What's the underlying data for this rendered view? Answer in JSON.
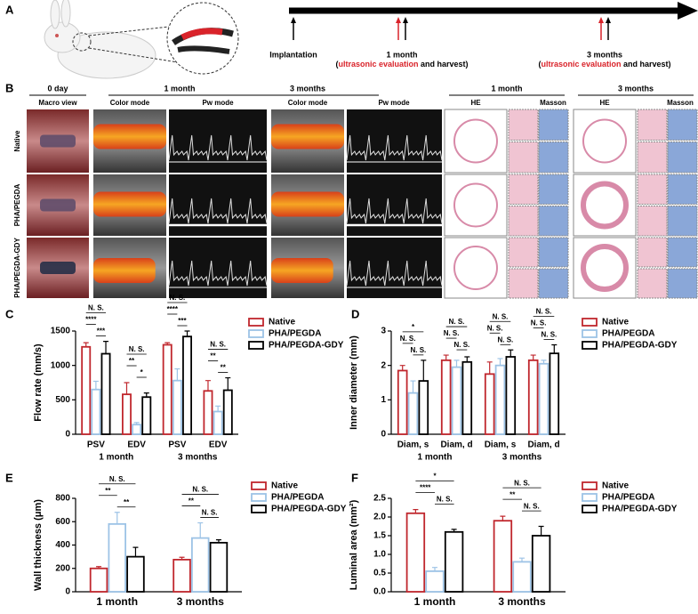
{
  "panel_labels": [
    "A",
    "B",
    "C",
    "D",
    "E",
    "F"
  ],
  "timeline": [
    {
      "label": "Implantation"
    },
    {
      "label": "1 month",
      "note": [
        "(",
        "ultrasonic evaluation",
        " and harvest)"
      ]
    },
    {
      "label": "3 months",
      "note": [
        "(",
        "ultrasonic evaluation",
        " and harvest)"
      ]
    }
  ],
  "panel_b": {
    "columns": [
      "0 day",
      "1 month",
      "3 months",
      "1 month",
      "3 months"
    ],
    "subcolumns": [
      "Macro view",
      "Color mode",
      "Pw mode",
      "Color mode",
      "Pw mode",
      "HE",
      "Masson",
      "HE",
      "Masson"
    ],
    "rows": [
      "Native",
      "PHA/PEGDA",
      "PHA/PEGDA-GDY"
    ]
  },
  "chart_data": [
    {
      "type": "bar",
      "y_label": "Flow rate (mm/s)",
      "categories": [
        "PSV",
        "EDV",
        "PSV",
        "EDV"
      ],
      "group_labels": [
        "1 month",
        "3 months"
      ],
      "series": [
        {
          "name": "Native",
          "color": "#c0272d",
          "values": [
            1270,
            580,
            1300,
            630
          ],
          "errors": [
            60,
            170,
            30,
            150
          ]
        },
        {
          "name": "PHA/PEGDA",
          "color": "#9dc3e6",
          "values": [
            650,
            140,
            780,
            330
          ],
          "errors": [
            120,
            30,
            170,
            80
          ]
        },
        {
          "name": "PHA/PEGDA-GDY",
          "color": "#000000",
          "values": [
            1170,
            540,
            1420,
            640
          ],
          "errors": [
            180,
            60,
            80,
            180
          ]
        }
      ],
      "ylim": [
        0,
        1500
      ],
      "yticks": [
        0,
        500,
        1000,
        1500
      ],
      "significance": [
        [
          "N. S.",
          "****",
          "***"
        ],
        [
          "N. S.",
          "**",
          "*"
        ],
        [
          "N. S.",
          "****",
          "***"
        ],
        [
          "N. S.",
          "**",
          "**"
        ]
      ]
    },
    {
      "type": "bar",
      "y_label": "Inner diameter (mm)",
      "categories": [
        "Diam, s",
        "Diam, d",
        "Diam, s",
        "Diam, d"
      ],
      "group_labels": [
        "1 month",
        "3 months"
      ],
      "series": [
        {
          "name": "Native",
          "color": "#c0272d",
          "values": [
            1.85,
            2.15,
            1.75,
            2.15
          ],
          "errors": [
            0.15,
            0.15,
            0.35,
            0.15
          ]
        },
        {
          "name": "PHA/PEGDA",
          "color": "#9dc3e6",
          "values": [
            1.2,
            1.95,
            2.0,
            2.05
          ],
          "errors": [
            0.35,
            0.2,
            0.2,
            0.1
          ]
        },
        {
          "name": "PHA/PEGDA-GDY",
          "color": "#000000",
          "values": [
            1.55,
            2.1,
            2.25,
            2.35
          ],
          "errors": [
            0.6,
            0.15,
            0.2,
            0.25
          ]
        }
      ],
      "ylim": [
        0,
        3
      ],
      "yticks": [
        0,
        1,
        2,
        3
      ],
      "significance": [
        [
          "*",
          "N. S.",
          "N. S."
        ],
        [
          "N. S.",
          "N. S.",
          "N. S."
        ],
        [
          "N. S.",
          "N. S.",
          "N. S."
        ],
        [
          "N. S.",
          "N. S.",
          "N. S."
        ]
      ]
    },
    {
      "type": "bar",
      "y_label": "Wall thickness (μm)",
      "categories": [
        "1 month",
        "3 months"
      ],
      "series": [
        {
          "name": "Native",
          "color": "#c0272d",
          "values": [
            200,
            275
          ],
          "errors": [
            15,
            20
          ]
        },
        {
          "name": "PHA/PEGDA",
          "color": "#9dc3e6",
          "values": [
            580,
            460
          ],
          "errors": [
            100,
            130
          ]
        },
        {
          "name": "PHA/PEGDA-GDY",
          "color": "#000000",
          "values": [
            300,
            420
          ],
          "errors": [
            80,
            25
          ]
        }
      ],
      "ylim": [
        0,
        800
      ],
      "yticks": [
        0,
        200,
        400,
        600,
        800
      ],
      "significance": [
        [
          "N. S.",
          "**",
          "**"
        ],
        [
          "N. S.",
          "**",
          "N. S."
        ]
      ]
    },
    {
      "type": "bar",
      "y_label": "Luminal area (mm²)",
      "categories": [
        "1 month",
        "3 months"
      ],
      "series": [
        {
          "name": "Native",
          "color": "#c0272d",
          "values": [
            2.1,
            1.9
          ],
          "errors": [
            0.1,
            0.12
          ]
        },
        {
          "name": "PHA/PEGDA",
          "color": "#9dc3e6",
          "values": [
            0.55,
            0.8
          ],
          "errors": [
            0.1,
            0.1
          ]
        },
        {
          "name": "PHA/PEGDA-GDY",
          "color": "#000000",
          "values": [
            1.6,
            1.5
          ],
          "errors": [
            0.07,
            0.25
          ]
        }
      ],
      "ylim": [
        0,
        2.5
      ],
      "yticks": [
        {
          "value": 0,
          "label": "0.0"
        },
        0.5,
        {
          "value": 1,
          "label": "1.0"
        },
        1.5,
        {
          "value": 2,
          "label": "2.0"
        },
        2.5
      ],
      "significance": [
        [
          "*",
          "****",
          "N. S."
        ],
        [
          "N. S.",
          "**",
          "N. S."
        ]
      ]
    }
  ]
}
